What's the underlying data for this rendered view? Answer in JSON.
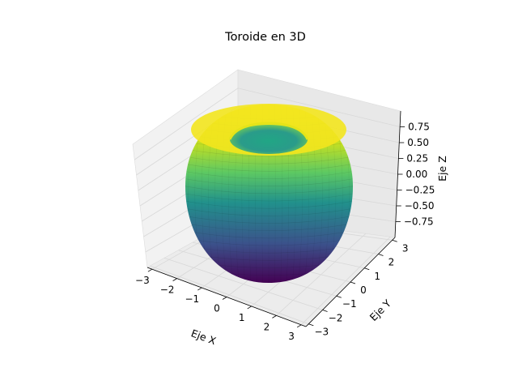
{
  "chart_data": {
    "type": "surface3d",
    "title": "Toroide en 3D",
    "xlabel": "Eje X",
    "ylabel": "Eje Y",
    "zlabel": "Eje Z",
    "xlim": [
      -3,
      3
    ],
    "ylim": [
      -3,
      3
    ],
    "zlim": [
      -1,
      1
    ],
    "xticks": [
      "−3",
      "−2",
      "−1",
      "0",
      "1",
      "2",
      "3"
    ],
    "yticks": [
      "−3",
      "−2",
      "−1",
      "0",
      "1",
      "2",
      "3"
    ],
    "zticks": [
      "0.75",
      "0.50",
      "0.25",
      "0.00",
      "−0.25",
      "−0.50",
      "−0.75"
    ],
    "xtick_values": [
      -3,
      -2,
      -1,
      0,
      1,
      2,
      3
    ],
    "ytick_values": [
      -3,
      -2,
      -1,
      0,
      1,
      2,
      3
    ],
    "ztick_values": [
      0.75,
      0.5,
      0.25,
      0,
      -0.25,
      -0.5,
      -0.75
    ],
    "surface": {
      "shape": "torus",
      "major_radius": 2,
      "minor_radius": 1,
      "colormap": "viridis",
      "colormap_stops": [
        "#440154",
        "#3b528b",
        "#21918c",
        "#5ec962",
        "#fde725"
      ]
    },
    "grid": true
  }
}
